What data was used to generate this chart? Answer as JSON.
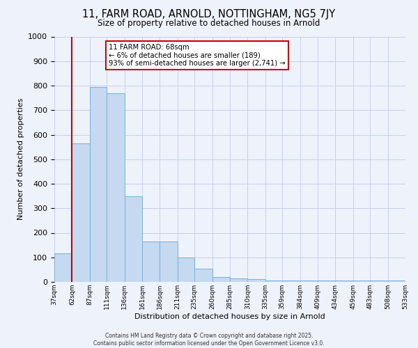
{
  "title": "11, FARM ROAD, ARNOLD, NOTTINGHAM, NG5 7JY",
  "subtitle": "Size of property relative to detached houses in Arnold",
  "xlabel": "Distribution of detached houses by size in Arnold",
  "ylabel": "Number of detached properties",
  "bins": [
    37,
    62,
    87,
    111,
    136,
    161,
    186,
    211,
    235,
    260,
    285,
    310,
    335,
    359,
    384,
    409,
    434,
    459,
    483,
    508,
    533
  ],
  "bin_labels": [
    "37sqm",
    "62sqm",
    "87sqm",
    "111sqm",
    "136sqm",
    "161sqm",
    "186sqm",
    "211sqm",
    "235sqm",
    "260sqm",
    "285sqm",
    "310sqm",
    "335sqm",
    "359sqm",
    "384sqm",
    "409sqm",
    "434sqm",
    "459sqm",
    "483sqm",
    "508sqm",
    "533sqm"
  ],
  "bar_heights": [
    115,
    565,
    795,
    770,
    350,
    165,
    165,
    100,
    55,
    20,
    15,
    10,
    5,
    5,
    5,
    5,
    5,
    5,
    5,
    5
  ],
  "bar_color": "#c5d9f0",
  "bar_edge_color": "#7bafd4",
  "red_line_x": 62,
  "ylim": [
    0,
    1000
  ],
  "yticks": [
    0,
    100,
    200,
    300,
    400,
    500,
    600,
    700,
    800,
    900,
    1000
  ],
  "annotation_title": "11 FARM ROAD: 68sqm",
  "annotation_line1": "← 6% of detached houses are smaller (189)",
  "annotation_line2": "93% of semi-detached houses are larger (2,741) →",
  "annotation_box_color": "#ffffff",
  "annotation_box_edge_color": "#cc0000",
  "bg_color": "#eef2fb",
  "grid_color": "#c8d0e8",
  "footer_line1": "Contains HM Land Registry data © Crown copyright and database right 2025.",
  "footer_line2": "Contains public sector information licensed under the Open Government Licence v3.0."
}
